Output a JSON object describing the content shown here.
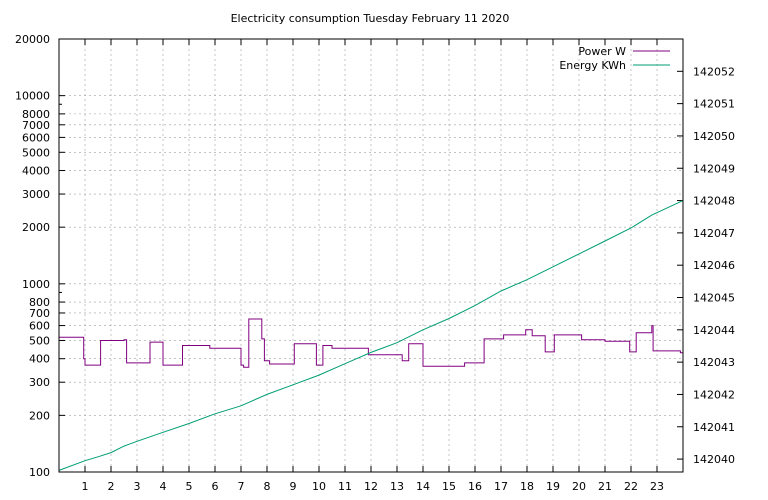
{
  "chart_data": {
    "type": "line",
    "title": "Electricity consumption Tuesday February 11 2020",
    "xlim": [
      0,
      24
    ],
    "x_ticks": [
      1,
      2,
      3,
      4,
      5,
      6,
      7,
      8,
      9,
      10,
      11,
      12,
      13,
      14,
      15,
      16,
      17,
      18,
      19,
      20,
      21,
      22,
      23
    ],
    "y_scale": "log",
    "ylim": [
      100,
      20000
    ],
    "y_ticks": [
      100,
      200,
      300,
      400,
      500,
      600,
      700,
      800,
      1000,
      2000,
      3000,
      4000,
      5000,
      6000,
      7000,
      8000,
      10000,
      20000
    ],
    "y2lim": [
      142039.6,
      142053.0
    ],
    "y2_ticks": [
      142040,
      142041,
      142042,
      142043,
      142044,
      142045,
      142046,
      142047,
      142048,
      142049,
      142050,
      142051,
      142052
    ],
    "grid": true,
    "legend_position": "top-right",
    "colors": {
      "power": "#800080",
      "energy": "#009e73"
    },
    "series": [
      {
        "name": "Power W",
        "axis": "y",
        "step": true,
        "x": [
          0,
          0.95,
          1.0,
          1.25,
          1.6,
          2.5,
          2.6,
          3.4,
          3.5,
          4.0,
          4.7,
          4.75,
          5.8,
          7.0,
          7.1,
          7.3,
          7.8,
          7.9,
          8.1,
          9.05,
          9.5,
          9.9,
          10.15,
          10.5,
          11.9,
          13.2,
          13.45,
          13.95,
          14.0,
          15.55,
          15.6,
          16.35,
          17.1,
          17.95,
          18.2,
          18.7,
          19.05,
          20.1,
          21.0,
          21.95,
          22.2,
          22.8,
          22.85,
          23.9
        ],
        "y": [
          520,
          400,
          370,
          370,
          500,
          505,
          380,
          380,
          490,
          370,
          370,
          470,
          455,
          370,
          360,
          650,
          510,
          390,
          375,
          480,
          480,
          370,
          470,
          455,
          420,
          390,
          480,
          480,
          365,
          365,
          380,
          510,
          535,
          570,
          530,
          435,
          535,
          505,
          495,
          435,
          550,
          600,
          440,
          430
        ]
      },
      {
        "name": "Energy KWh",
        "axis": "y2",
        "step": false,
        "x": [
          0,
          1,
          1.5,
          2,
          2.5,
          3,
          4,
          5,
          6,
          7,
          8,
          9,
          10,
          11,
          12,
          13,
          14,
          15,
          16,
          17,
          18,
          19,
          20,
          21,
          22,
          22.8,
          24
        ],
        "y": [
          142039.65,
          142039.95,
          142040.07,
          142040.2,
          142040.4,
          142040.55,
          142040.83,
          142041.1,
          142041.4,
          142041.65,
          142042.0,
          142042.3,
          142042.6,
          142042.95,
          142043.3,
          142043.6,
          142044.0,
          142044.35,
          142044.75,
          142045.2,
          142045.55,
          142045.95,
          142046.35,
          142046.75,
          142047.15,
          142047.55,
          142048.0
        ]
      }
    ]
  }
}
